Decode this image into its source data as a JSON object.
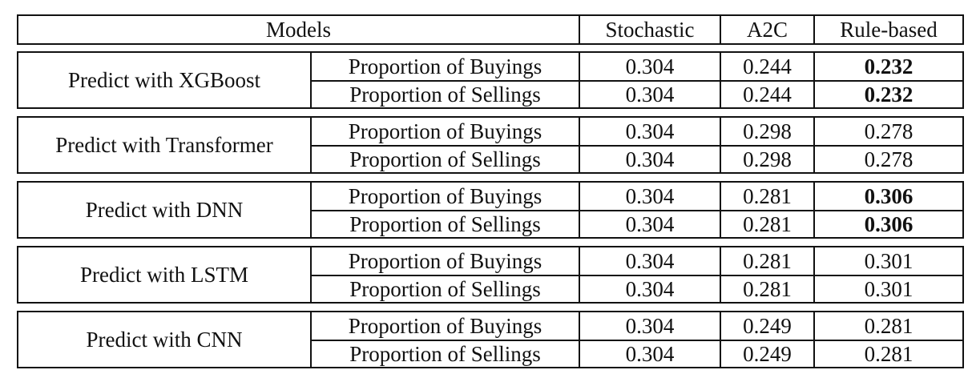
{
  "header": {
    "models": "Models",
    "stochastic": "Stochastic",
    "a2c": "A2C",
    "rule_based": "Rule-based"
  },
  "groups": [
    {
      "model": "Predict with XGBoost",
      "rows": [
        {
          "metric": "Proportion of Buyings",
          "stochastic": "0.304",
          "a2c": "0.244",
          "rule_based": "0.232",
          "rule_based_bold": true
        },
        {
          "metric": "Proportion of Sellings",
          "stochastic": "0.304",
          "a2c": "0.244",
          "rule_based": "0.232",
          "rule_based_bold": true
        }
      ]
    },
    {
      "model": "Predict with Transformer",
      "rows": [
        {
          "metric": "Proportion of Buyings",
          "stochastic": "0.304",
          "a2c": "0.298",
          "rule_based": "0.278",
          "rule_based_bold": false
        },
        {
          "metric": "Proportion of Sellings",
          "stochastic": "0.304",
          "a2c": "0.298",
          "rule_based": "0.278",
          "rule_based_bold": false
        }
      ]
    },
    {
      "model": "Predict with DNN",
      "rows": [
        {
          "metric": "Proportion of Buyings",
          "stochastic": "0.304",
          "a2c": "0.281",
          "rule_based": "0.306",
          "rule_based_bold": true
        },
        {
          "metric": "Proportion of Sellings",
          "stochastic": "0.304",
          "a2c": "0.281",
          "rule_based": "0.306",
          "rule_based_bold": true
        }
      ]
    },
    {
      "model": "Predict with LSTM",
      "rows": [
        {
          "metric": "Proportion of Buyings",
          "stochastic": "0.304",
          "a2c": "0.281",
          "rule_based": "0.301",
          "rule_based_bold": false
        },
        {
          "metric": "Proportion of Sellings",
          "stochastic": "0.304",
          "a2c": "0.281",
          "rule_based": "0.301",
          "rule_based_bold": false
        }
      ]
    },
    {
      "model": "Predict with CNN",
      "rows": [
        {
          "metric": "Proportion of Buyings",
          "stochastic": "0.304",
          "a2c": "0.249",
          "rule_based": "0.281",
          "rule_based_bold": false
        },
        {
          "metric": "Proportion of Sellings",
          "stochastic": "0.304",
          "a2c": "0.249",
          "rule_based": "0.281",
          "rule_based_bold": false
        }
      ]
    }
  ]
}
